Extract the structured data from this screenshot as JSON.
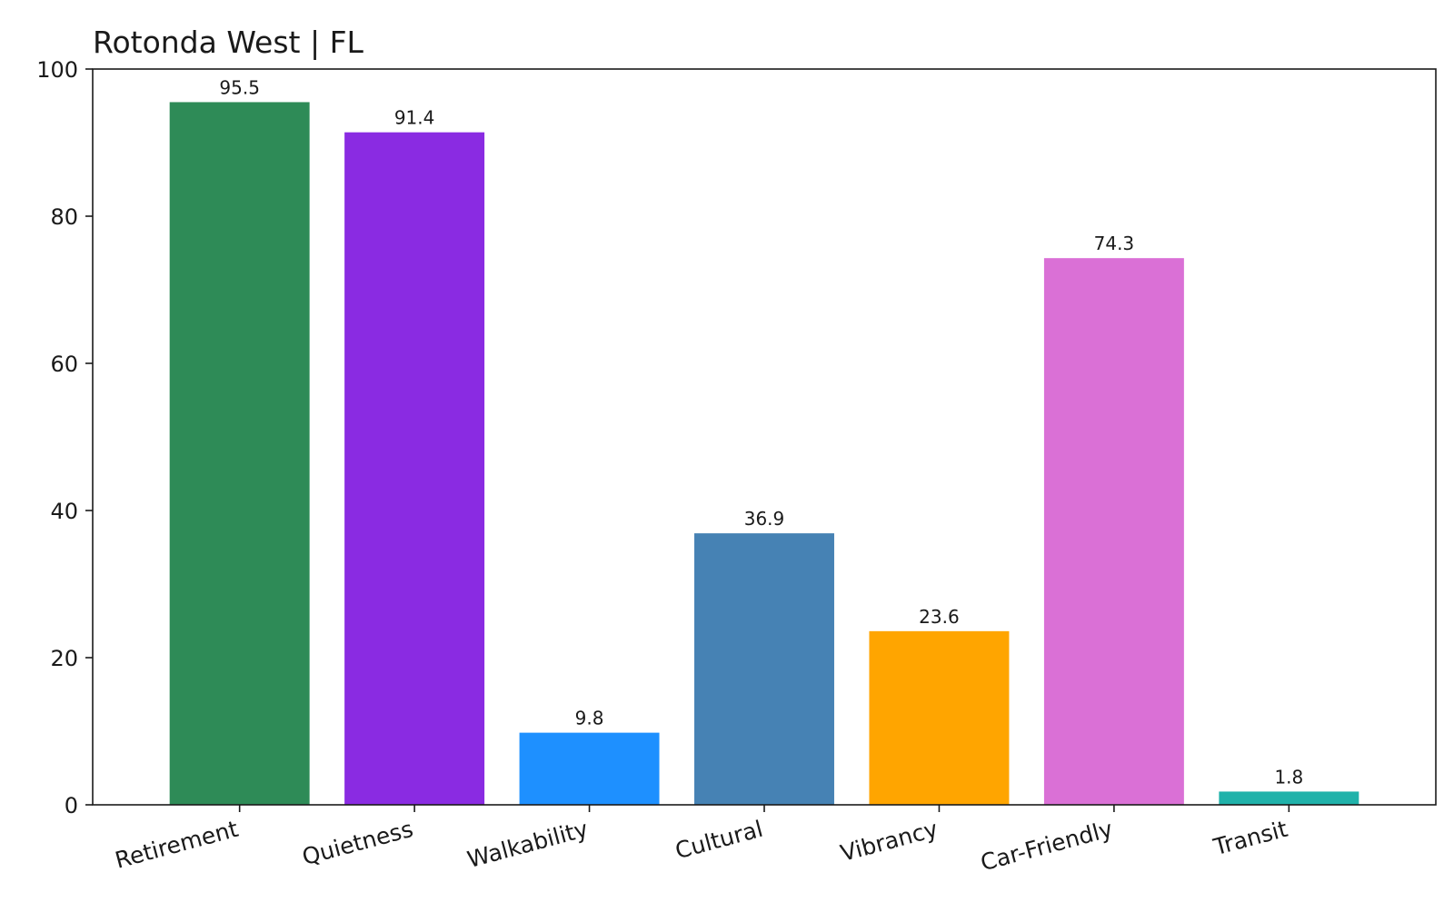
{
  "chart_data": {
    "type": "bar",
    "title": "Rotonda West | FL",
    "xlabel": "",
    "ylabel": "",
    "ylim": [
      0,
      100
    ],
    "yticks": [
      0,
      20,
      40,
      60,
      80,
      100
    ],
    "grid": false,
    "categories": [
      "Retirement",
      "Quietness",
      "Walkability",
      "Cultural",
      "Vibrancy",
      "Car-Friendly",
      "Transit"
    ],
    "values": [
      95.5,
      91.4,
      9.8,
      36.9,
      23.6,
      74.3,
      1.8
    ],
    "value_labels": [
      "95.5",
      "91.4",
      "9.8",
      "36.9",
      "23.6",
      "74.3",
      "1.8"
    ],
    "colors": [
      "#2e8b57",
      "#8a2be2",
      "#1e90ff",
      "#4682b4",
      "#ffa500",
      "#da70d6",
      "#20b2aa"
    ]
  }
}
